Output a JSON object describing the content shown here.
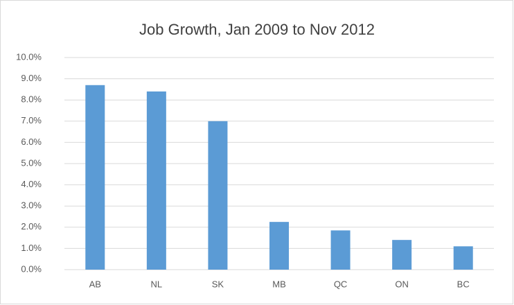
{
  "chart_data": {
    "type": "bar",
    "title": "Job Growth, Jan 2009 to Nov 2012",
    "categories": [
      "AB",
      "NL",
      "SK",
      "MB",
      "QC",
      "ON",
      "BC"
    ],
    "values": [
      8.7,
      8.4,
      7.0,
      2.25,
      1.85,
      1.4,
      1.1
    ],
    "color": "#5b9bd5",
    "ylim": [
      0,
      10
    ],
    "yticks": [
      {
        "value": 0,
        "label": "0.0%"
      },
      {
        "value": 1,
        "label": "1.0%"
      },
      {
        "value": 2,
        "label": "2.0%"
      },
      {
        "value": 3,
        "label": "3.0%"
      },
      {
        "value": 4,
        "label": "4.0%"
      },
      {
        "value": 5,
        "label": "5.0%"
      },
      {
        "value": 6,
        "label": "6.0%"
      },
      {
        "value": 7,
        "label": "7.0%"
      },
      {
        "value": 8,
        "label": "8.0%"
      },
      {
        "value": 9,
        "label": "9.0%"
      },
      {
        "value": 10,
        "label": "10.0%"
      }
    ],
    "grid": true
  }
}
